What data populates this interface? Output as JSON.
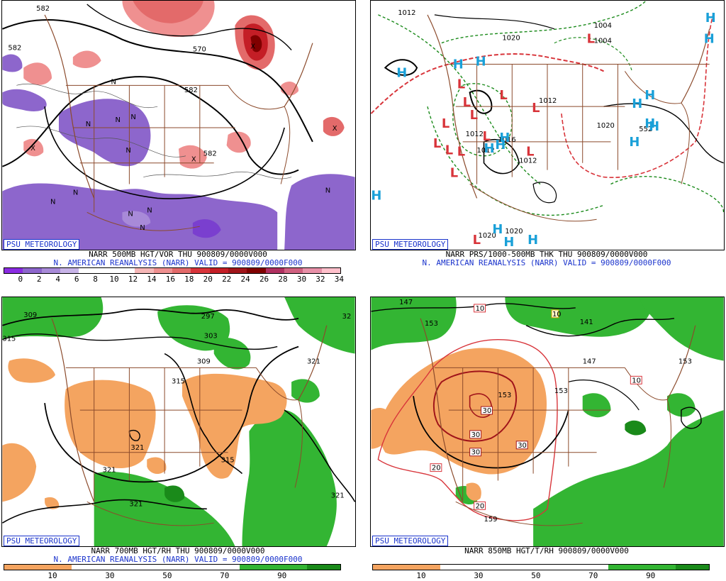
{
  "brand": "PSU METEOROLOGY",
  "colors": {
    "reanalysis_text": "#1a33cc",
    "vorticity_low": "#8d66cc",
    "vorticity_high": "#d8343a",
    "moist": "#33b533",
    "dry": "#f4a460",
    "borders": "#8b4a2b"
  },
  "panels": [
    {
      "id": "p500",
      "caption": "NARR 500MB HGT/VOR THU 900809/0000V000",
      "subcaption": "N. AMERICAN REANALYSIS (NARR) VALID = 900809/0000F000",
      "scale": [
        "0",
        "2",
        "4",
        "6",
        "8",
        "10",
        "12",
        "14",
        "16",
        "18",
        "20",
        "22",
        "24",
        "26",
        "28",
        "30",
        "32",
        "34"
      ],
      "scale_colors": [
        "#8a2be2",
        "#8d66cc",
        "#a88ad8",
        "#c8b4e8",
        "#ffffff",
        "#ffffff",
        "#ffffff",
        "#f6b7b7",
        "#ef9090",
        "#e36a6a",
        "#d8343a",
        "#c41e26",
        "#a0141a",
        "#800000",
        "#b03060",
        "#d06080",
        "#e890a8",
        "#ffc0cb"
      ],
      "contour_labels": [
        "582",
        "570",
        "582",
        "582",
        "582"
      ],
      "markers": [
        "N",
        "N",
        "N",
        "N",
        "N",
        "N",
        "N",
        "N",
        "N",
        "N",
        "N",
        "X",
        "X",
        "X",
        "X"
      ]
    },
    {
      "id": "p1000",
      "caption": "NARR PRS/1000-500MB THK THU 900809/0000V000",
      "subcaption": "N. AMERICAN REANALYSIS (NARR) VALID = 900809/0000F000",
      "contour_labels": [
        "1012",
        "1020",
        "1004",
        "1004",
        "1012",
        "1012",
        "1012",
        "1016",
        "1012",
        "1020",
        "1020",
        "1020",
        "552"
      ],
      "lows": [
        "L",
        "L",
        "L",
        "L",
        "L",
        "L",
        "L",
        "L",
        "L",
        "L",
        "L",
        "L",
        "L",
        "L"
      ],
      "highs": [
        "H",
        "H",
        "H",
        "H",
        "H",
        "H",
        "H",
        "H",
        "H",
        "H",
        "H",
        "H",
        "H",
        "H",
        "H",
        "H",
        "H"
      ]
    },
    {
      "id": "p700",
      "caption": "NARR 700MB HGT/RH THU 900809/0000V000",
      "subcaption": "N. AMERICAN REANALYSIS (NARR) VALID = 900809/0000F000",
      "scale": [
        "10",
        "30",
        "50",
        "70",
        "90"
      ],
      "contour_labels": [
        "309",
        "297",
        "303",
        "309",
        "315",
        "321",
        "321",
        "315",
        "321",
        "321",
        "321",
        "315",
        "32"
      ]
    },
    {
      "id": "p850",
      "caption": "NARR 850MB HGT/T/RH 900809/0000V000",
      "subcaption": "",
      "scale": [
        "10",
        "30",
        "50",
        "70",
        "90"
      ],
      "contour_labels": [
        "147",
        "153",
        "141",
        "147",
        "153",
        "153",
        "153",
        "159"
      ],
      "temp_labels": [
        "10",
        "10",
        "10",
        "20",
        "20",
        "30",
        "30",
        "30",
        "30"
      ]
    }
  ]
}
